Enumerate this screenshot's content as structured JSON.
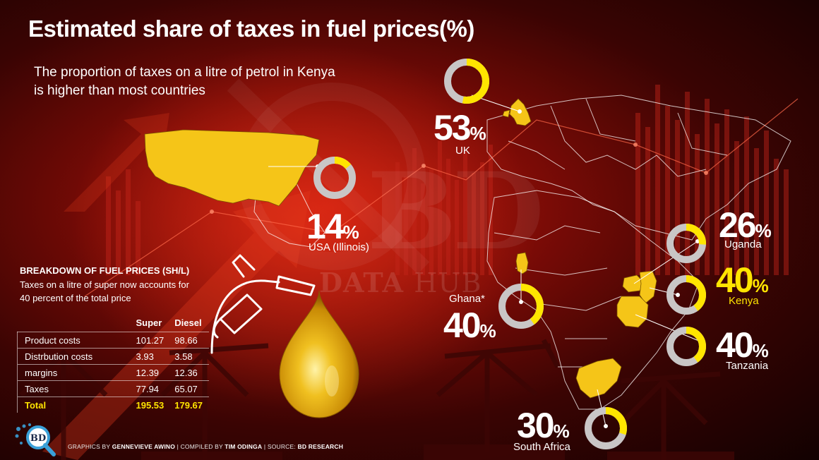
{
  "title": "Estimated share of taxes in fuel prices(%)",
  "subtitle": "The proportion of taxes on a litre of petrol in Kenya is higher than most countries",
  "watermark": {
    "logo_text": "BD",
    "hub_text": "DATA HUB",
    "hub_bold": "DATA",
    "hub_light": "HUB"
  },
  "chart_data": {
    "type": "pie",
    "title": "Estimated share of taxes in fuel prices(%)",
    "unit": "%",
    "categories": [
      "UK",
      "USA (Illinois)",
      "Uganda",
      "Kenya",
      "Tanzania",
      "Ghana*",
      "South Africa"
    ],
    "values": [
      53,
      14,
      26,
      40,
      40,
      40,
      30
    ],
    "countries": [
      {
        "name": "UK",
        "value": 53,
        "value_text": "53",
        "highlight": false
      },
      {
        "name": "USA (Illinois)",
        "value": 14,
        "value_text": "14",
        "highlight": false
      },
      {
        "name": "Uganda",
        "value": 26,
        "value_text": "26",
        "highlight": false
      },
      {
        "name": "Kenya",
        "value": 40,
        "value_text": "40",
        "highlight": true
      },
      {
        "name": "Tanzania",
        "value": 40,
        "value_text": "40",
        "highlight": false
      },
      {
        "name": "Ghana*",
        "value": 40,
        "value_text": "40",
        "highlight": false
      },
      {
        "name": "South Africa",
        "value": 30,
        "value_text": "30",
        "highlight": false
      }
    ],
    "percent_symbol": "%",
    "colors": {
      "taxes": "#ffe500",
      "remainder": "#c9c6c6",
      "highlight_text": "#ffe500"
    }
  },
  "breakdown": {
    "heading": "BREAKDOWN OF FUEL PRICES (SH/L)",
    "note": "Taxes on a litre of super now accounts for 40 percent of the total price",
    "columns": [
      "",
      "Super",
      "Diesel"
    ],
    "rows": [
      {
        "label": "Product costs",
        "super": "101.27",
        "diesel": "98.66"
      },
      {
        "label": "Distrbution costs",
        "super": "3.93",
        "diesel": "3.58"
      },
      {
        "label": "margins",
        "super": "12.39",
        "diesel": "12.36"
      },
      {
        "label": "Taxes",
        "super": "77.94",
        "diesel": "65.07"
      }
    ],
    "total": {
      "label": "Total",
      "super": "195.53",
      "diesel": "179.67"
    }
  },
  "credits": {
    "graphics_label": "GRAPHICS BY",
    "graphics_name": "GENNEVIEVE AWINO",
    "sep1": "| COMPILED BY",
    "compiled_name": "TIM ODINGA",
    "sep2": "| SOURCE:",
    "source_name": "BD RESEARCH"
  },
  "logo": {
    "text": "BD",
    "icon": "magnifier-icon"
  },
  "colors": {
    "accent": "#ffe500",
    "background": "#8a0d07",
    "map_fill": "#f5c518"
  }
}
